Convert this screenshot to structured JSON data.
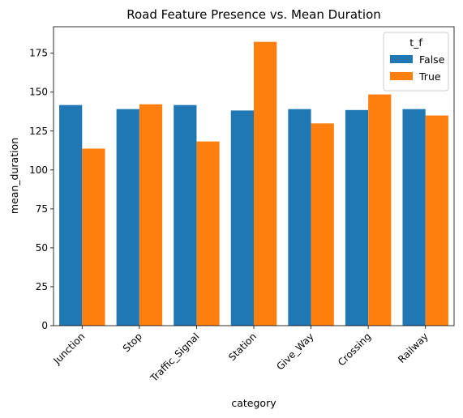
{
  "chart_data": {
    "type": "bar",
    "title": "Road Feature Presence vs. Mean Duration",
    "xlabel": "category",
    "ylabel": "mean_duration",
    "ylim": [
      0,
      192
    ],
    "yticks": [
      0,
      25,
      50,
      75,
      100,
      125,
      150,
      175
    ],
    "grid": false,
    "categories": [
      "Junction",
      "Stop",
      "Traffic_Signal",
      "Station",
      "Give_Way",
      "Crossing",
      "Railway"
    ],
    "series": [
      {
        "name": "False",
        "color": "#1f77b4",
        "values": [
          141.7,
          139.1,
          141.7,
          138.2,
          139.1,
          138.5,
          139.1
        ]
      },
      {
        "name": "True",
        "color": "#ff7f0e",
        "values": [
          113.7,
          142.2,
          118.3,
          182.3,
          129.9,
          148.5,
          135.0
        ]
      }
    ],
    "legend": {
      "title": "t_f",
      "placement": "top-right"
    }
  }
}
